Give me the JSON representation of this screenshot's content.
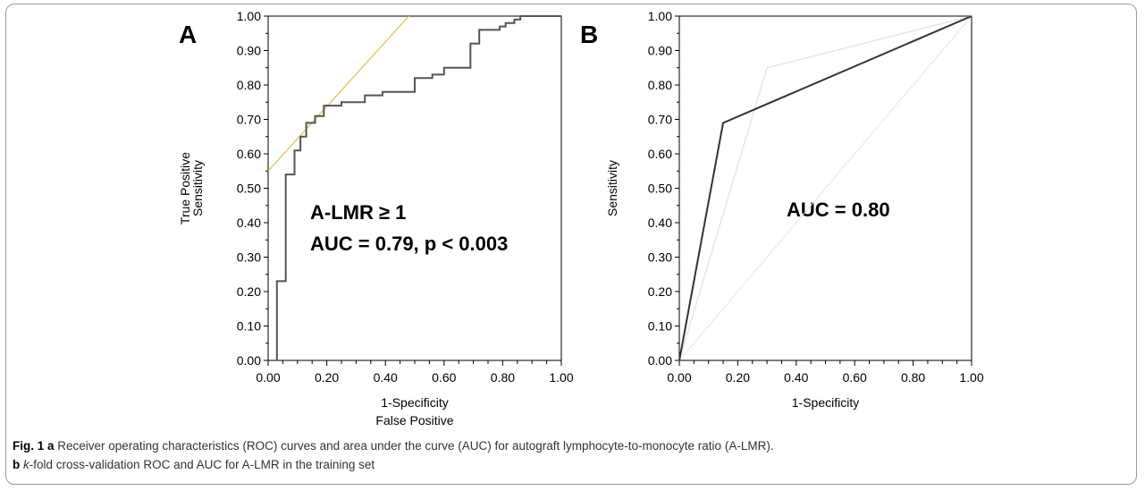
{
  "caption": {
    "line1_bold": "Fig. 1 a",
    "line1_text": " Receiver operating characteristics (ROC) curves and area under the curve (AUC) for autograft lymphocyte-to-monocyte ratio (A-LMR).",
    "line2_bold": "b",
    "line2_italic": "k",
    "line2_text": "-fold cross-validation ROC and AUC for A-LMR in the training set"
  },
  "chart_data": [
    {
      "panel": "A",
      "type": "line",
      "xlabel": [
        "1-Specificity",
        "False Positive"
      ],
      "ylabel": [
        "True Positive",
        "Sensitivity"
      ],
      "xlim": [
        0,
        1
      ],
      "ylim": [
        0,
        1
      ],
      "ticks": [
        "0.00",
        "0.10",
        "0.20",
        "0.30",
        "0.40",
        "0.50",
        "0.60",
        "0.70",
        "0.80",
        "0.90",
        "1.00"
      ],
      "x_tick_labels": [
        "0.00",
        "0.20",
        "0.40",
        "0.60",
        "0.80",
        "1.00"
      ],
      "annotations": [
        "A-LMR ≥ 1",
        "AUC = 0.79, p < 0.003"
      ],
      "colors": {
        "roc": "#555555",
        "tangent": "#e8c86a"
      },
      "series": [
        {
          "x": [
            0.03,
            0.03,
            0.06,
            0.06,
            0.09,
            0.09,
            0.11,
            0.11,
            0.13,
            0.13,
            0.16,
            0.16,
            0.19,
            0.19,
            0.25,
            0.25,
            0.33,
            0.33,
            0.39,
            0.39,
            0.5,
            0.5,
            0.56,
            0.56,
            0.6,
            0.6,
            0.69,
            0.69,
            0.72,
            0.72,
            0.79,
            0.79,
            0.81,
            0.81,
            0.84,
            0.84,
            0.86,
            0.86,
            0.88,
            0.88,
            1.0
          ],
          "y": [
            0.0,
            0.23,
            0.23,
            0.54,
            0.54,
            0.61,
            0.61,
            0.65,
            0.65,
            0.69,
            0.69,
            0.71,
            0.71,
            0.74,
            0.74,
            0.75,
            0.75,
            0.77,
            0.77,
            0.78,
            0.78,
            0.82,
            0.82,
            0.83,
            0.83,
            0.85,
            0.85,
            0.92,
            0.92,
            0.96,
            0.96,
            0.97,
            0.97,
            0.98,
            0.98,
            0.99,
            0.99,
            1.0,
            1.0,
            1.0,
            1.0
          ]
        },
        {
          "x": [
            0.0,
            0.48
          ],
          "y": [
            0.55,
            1.0
          ]
        }
      ]
    },
    {
      "panel": "B",
      "type": "line",
      "xlabel": [
        "1-Specificity"
      ],
      "ylabel": [
        "Sensitivity"
      ],
      "xlim": [
        0,
        1
      ],
      "ylim": [
        0,
        1
      ],
      "ticks": [
        "0.00",
        "0.10",
        "0.20",
        "0.30",
        "0.40",
        "0.50",
        "0.60",
        "0.70",
        "0.80",
        "0.90",
        "1.00"
      ],
      "x_tick_labels": [
        "0.00",
        "0.20",
        "0.40",
        "0.60",
        "0.80",
        "1.00"
      ],
      "annotations": [
        "AUC = 0.80"
      ],
      "colors": {
        "roc": "#333333",
        "fold": "#e6e6e6"
      },
      "series": [
        {
          "x": [
            0.0,
            0.15,
            1.0
          ],
          "y": [
            0.0,
            0.69,
            1.0
          ]
        },
        {
          "x": [
            0.0,
            0.3,
            1.0
          ],
          "y": [
            0.0,
            0.85,
            1.0
          ]
        },
        {
          "x": [
            0.0,
            1.0
          ],
          "y": [
            0.0,
            1.0
          ]
        }
      ]
    }
  ]
}
